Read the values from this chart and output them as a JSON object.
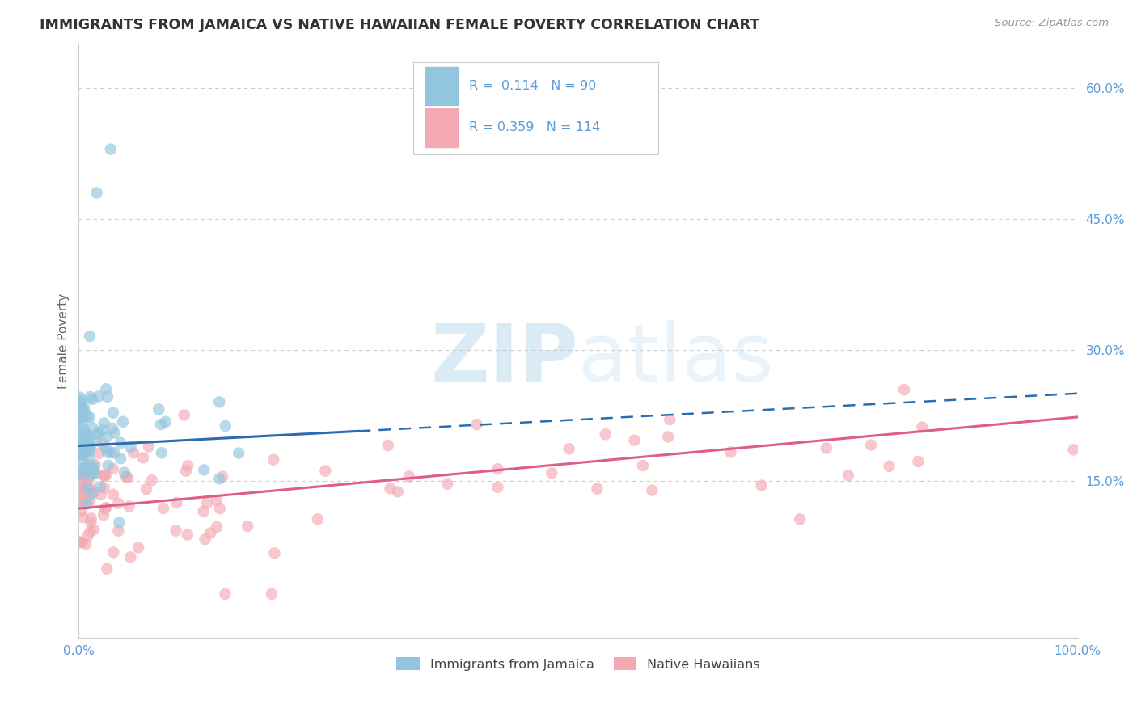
{
  "title": "IMMIGRANTS FROM JAMAICA VS NATIVE HAWAIIAN FEMALE POVERTY CORRELATION CHART",
  "source": "Source: ZipAtlas.com",
  "ylabel": "Female Poverty",
  "xlim": [
    0,
    1.0
  ],
  "ylim": [
    -0.03,
    0.65
  ],
  "legend1_label": "R =  0.114   N = 90",
  "legend2_label": "R = 0.359   N = 114",
  "legend_bottom1": "Immigrants from Jamaica",
  "legend_bottom2": "Native Hawaiians",
  "blue_color": "#92c5de",
  "pink_color": "#f4a9b2",
  "blue_line_color": "#2b6cb0",
  "pink_line_color": "#e05c8a",
  "title_color": "#333333",
  "axis_color": "#5b9bd5",
  "grid_color": "#cccccc",
  "watermark_color": "#d4e8f5",
  "R_blue": 0.114,
  "N_blue": 90,
  "R_pink": 0.359,
  "N_pink": 114,
  "blue_seed": 42,
  "pink_seed": 99
}
